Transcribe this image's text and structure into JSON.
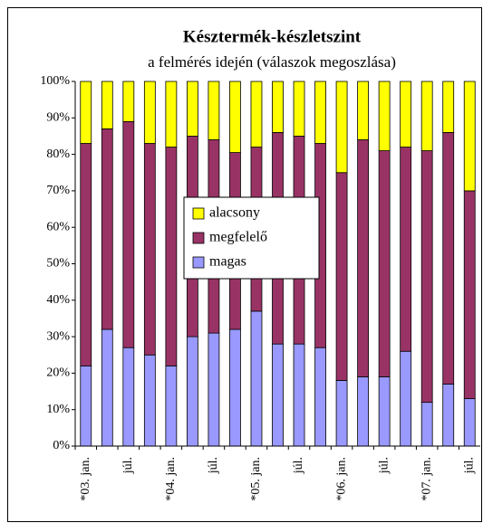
{
  "chart_data": {
    "type": "stacked-bar",
    "title": "Késztermék-készletszint",
    "subtitle": "a felmérés idején (válaszok megoszlása)",
    "categories": [
      "*03. jan.",
      null,
      "júl.",
      null,
      "*04. jan.",
      null,
      "júl.",
      null,
      "*05. jan.",
      null,
      "júl.",
      null,
      "*06. jan.",
      null,
      "júl.",
      null,
      "*07. jan.",
      null,
      "júl."
    ],
    "series": [
      {
        "name": "magas",
        "color": "#9999ff",
        "values": [
          22,
          32,
          27,
          25,
          22,
          30,
          31,
          32,
          37,
          28,
          28,
          27,
          18,
          19,
          19,
          26,
          12,
          17,
          13
        ]
      },
      {
        "name": "megfelelő",
        "color": "#993366",
        "values": [
          61,
          55,
          62,
          58,
          60,
          55,
          53,
          48.5,
          45,
          58,
          57,
          56,
          57,
          65,
          62,
          56,
          69,
          69,
          57
        ]
      },
      {
        "name": "alacsony",
        "color": "#ffff00",
        "values": [
          17,
          13,
          11,
          17,
          18,
          15,
          16,
          19.5,
          18,
          14,
          15,
          17,
          25,
          16,
          19,
          18,
          19,
          14,
          30
        ]
      }
    ],
    "ylim": [
      0,
      100
    ],
    "yticks": [
      {
        "value": 0,
        "label": "0%"
      },
      {
        "value": 10,
        "label": "10%"
      },
      {
        "value": 20,
        "label": "20%"
      },
      {
        "value": 30,
        "label": "30%"
      },
      {
        "value": 40,
        "label": "40%"
      },
      {
        "value": 50,
        "label": "50%"
      },
      {
        "value": 60,
        "label": "60%"
      },
      {
        "value": 70,
        "label": "70%"
      },
      {
        "value": 80,
        "label": "80%"
      },
      {
        "value": 90,
        "label": "90%"
      },
      {
        "value": 100,
        "label": "100%"
      }
    ],
    "legend": "center"
  }
}
